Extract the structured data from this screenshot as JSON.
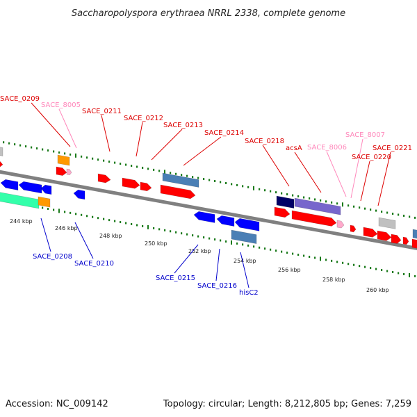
{
  "title": "Saccharopolyspora erythraea NRRL 2338, complete genome",
  "footer": {
    "accession": "Accession: NC_009142",
    "topology": "Topology: circular; Length: 8,212,805 bp; Genes: 7,259"
  },
  "ticks": [
    "244 kbp",
    "246 kbp",
    "248 kbp",
    "250 kbp",
    "252 kbp",
    "254 kbp",
    "256 kbp",
    "258 kbp",
    "260 kbp"
  ],
  "colors": {
    "backbone": "#808080",
    "gc_track": "#1a7a1a",
    "red_gene": "#ff0000",
    "pink_gene": "#ffaacc",
    "blue_gene": "#0000ff",
    "steel_gene": "#4a7fb5",
    "navy_gene": "#000066",
    "purple_gene": "#7766cc",
    "orange_gene": "#ff9900",
    "cyan_gene": "#33ffaa",
    "gray_gene": "#c0c0c0",
    "label_red": "#dd0000",
    "label_pink": "#ff88bb",
    "label_blue": "#0000cc"
  },
  "top_labels": [
    {
      "name": "SACE_0209",
      "color": "red"
    },
    {
      "name": "SACE_8005",
      "color": "pink"
    },
    {
      "name": "SACE_0211",
      "color": "red"
    },
    {
      "name": "SACE_0212",
      "color": "red"
    },
    {
      "name": "SACE_0213",
      "color": "red"
    },
    {
      "name": "SACE_0214",
      "color": "red"
    },
    {
      "name": "SACE_0218",
      "color": "red"
    },
    {
      "name": "acsA",
      "color": "red"
    },
    {
      "name": "SACE_8006",
      "color": "pink"
    },
    {
      "name": "SACE_8007",
      "color": "pink"
    },
    {
      "name": "SACE_0220",
      "color": "red"
    },
    {
      "name": "SACE_0221",
      "color": "red"
    }
  ],
  "bottom_labels": [
    {
      "name": "SACE_0208",
      "color": "blue"
    },
    {
      "name": "SACE_0210",
      "color": "blue"
    },
    {
      "name": "SACE_0215",
      "color": "blue"
    },
    {
      "name": "SACE_0216",
      "color": "blue"
    },
    {
      "name": "hisC2",
      "color": "blue"
    }
  ]
}
